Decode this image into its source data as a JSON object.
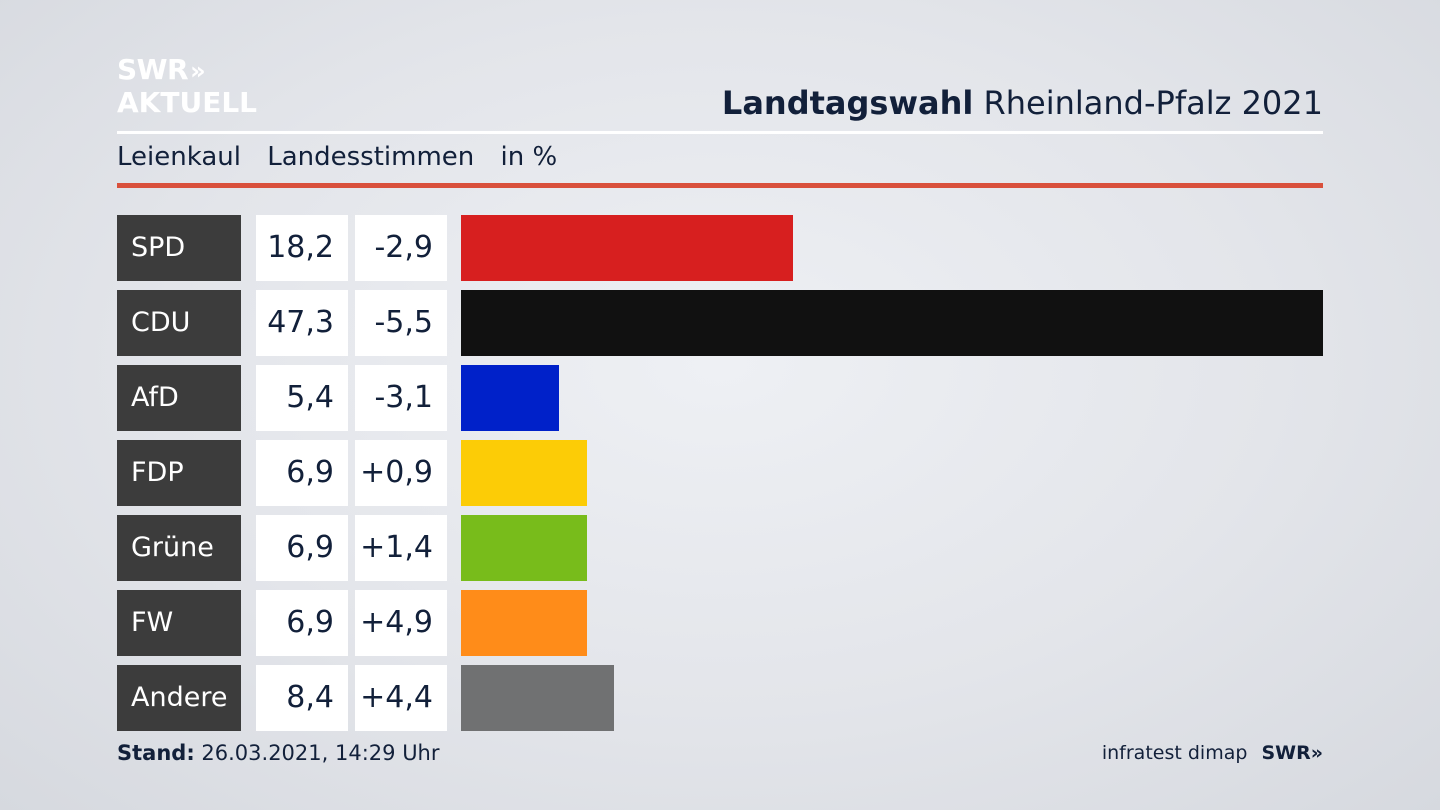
{
  "logo": {
    "line1": "SWR",
    "chevrons": "»",
    "line2": "AKTUELL"
  },
  "header": {
    "title_bold": "Landtagswahl",
    "title_rest": "Rheinland-Pfalz 2021"
  },
  "subheader": {
    "region": "Leienkaul",
    "vote_type": "Landesstimmen",
    "unit": "in %"
  },
  "colors": {
    "accent_rule": "#d9503c",
    "label_bg": "#3c3c3c"
  },
  "chart_data": {
    "type": "bar",
    "orientation": "horizontal",
    "categories": [
      "SPD",
      "CDU",
      "AfD",
      "FDP",
      "Grüne",
      "FW",
      "Andere"
    ],
    "values": [
      18.2,
      47.3,
      5.4,
      6.9,
      6.9,
      6.9,
      8.4
    ],
    "value_labels": [
      "18,2",
      "47,3",
      "5,4",
      "6,9",
      "6,9",
      "6,9",
      "8,4"
    ],
    "changes": [
      "-2,9",
      "-5,5",
      "-3,1",
      "+0,9",
      "+1,4",
      "+4,9",
      "+4,4"
    ],
    "colors": [
      "#d71f1f",
      "#111111",
      "#0021c9",
      "#fccc06",
      "#78bc1b",
      "#ff8c19",
      "#707172"
    ],
    "xlim": [
      0,
      47.3
    ],
    "grid": false
  },
  "footer": {
    "stand_label": "Stand:",
    "stand_value": "26.03.2021, 14:29 Uhr",
    "source": "infratest dimap",
    "brand": "SWR»"
  }
}
